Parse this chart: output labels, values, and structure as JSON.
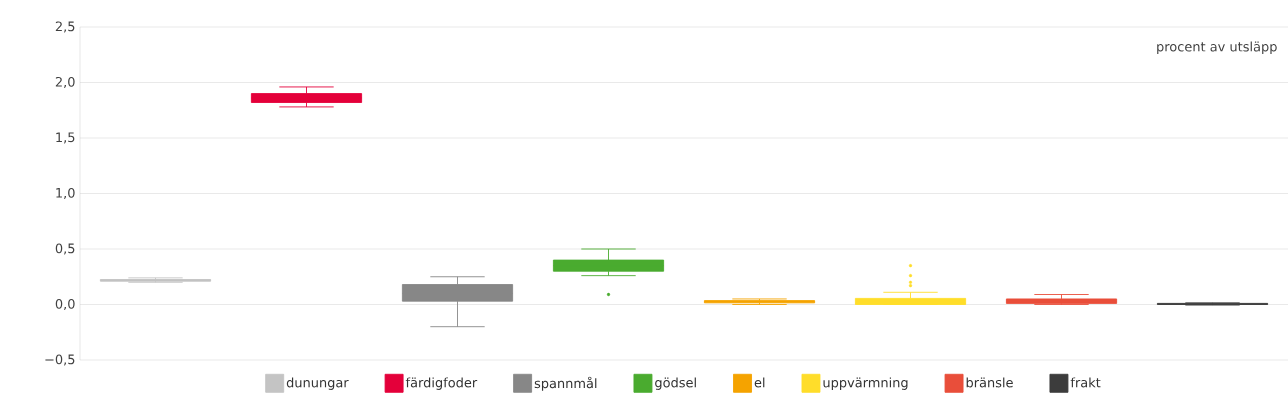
{
  "chart_data": {
    "type": "box",
    "categories": [
      null,
      null,
      null,
      null,
      null,
      null,
      null,
      null
    ],
    "series": [
      {
        "name": "dunungar",
        "color": "#c4c4c4",
        "boxes": [
          {
            "low": 0.2,
            "q1": 0.21,
            "median": 0.22,
            "q3": 0.225,
            "high": 0.24
          },
          null,
          null,
          null,
          null,
          null,
          null,
          null
        ]
      },
      {
        "name": "färdigfoder",
        "color": "#e4003a",
        "boxes": [
          null,
          {
            "low": 1.78,
            "q1": 1.82,
            "median": 1.86,
            "q3": 1.9,
            "high": 1.96
          },
          null,
          null,
          null,
          null,
          null,
          null
        ]
      },
      {
        "name": "spannmål",
        "color": "#878787",
        "boxes": [
          null,
          null,
          {
            "low": -0.2,
            "q1": 0.03,
            "median": 0.1,
            "q3": 0.18,
            "high": 0.25
          },
          null,
          null,
          null,
          null,
          null
        ]
      },
      {
        "name": "gödsel",
        "color": "#4aab2f",
        "boxes": [
          null,
          null,
          null,
          {
            "low": 0.26,
            "q1": 0.3,
            "median": 0.35,
            "q3": 0.4,
            "high": 0.5,
            "outliers": [
              0.09
            ]
          },
          null,
          null,
          null,
          null
        ]
      },
      {
        "name": "el",
        "color": "#f5a300",
        "boxes": [
          null,
          null,
          null,
          null,
          {
            "low": 0.0,
            "q1": 0.015,
            "median": 0.025,
            "q3": 0.035,
            "high": 0.05
          },
          null,
          null,
          null
        ]
      },
      {
        "name": "uppvärmning",
        "color": "#ffdd2a",
        "boxes": [
          null,
          null,
          null,
          null,
          null,
          {
            "low": 0.0,
            "q1": 0.0,
            "median": 0.01,
            "q3": 0.055,
            "high": 0.11,
            "outliers": [
              0.35,
              0.26,
              0.2,
              0.17
            ]
          },
          null,
          null
        ]
      },
      {
        "name": "bränsle",
        "color": "#e94e3a",
        "boxes": [
          null,
          null,
          null,
          null,
          null,
          null,
          {
            "low": 0.0,
            "q1": 0.01,
            "median": 0.03,
            "q3": 0.05,
            "high": 0.09
          },
          null
        ]
      },
      {
        "name": "frakt",
        "color": "#3c3c3c",
        "boxes": [
          null,
          null,
          null,
          null,
          null,
          null,
          null,
          {
            "low": -0.005,
            "q1": 0.0,
            "median": 0.005,
            "q3": 0.01,
            "high": 0.015
          }
        ]
      }
    ],
    "ylim": [
      -0.5,
      2.5
    ],
    "yticks": [
      {
        "value": -0.5,
        "label": "−0,5"
      },
      {
        "value": 0,
        "label": "0,0"
      },
      {
        "value": 0.5,
        "label": "0,5"
      },
      {
        "value": 1,
        "label": "1,0"
      },
      {
        "value": 1.5,
        "label": "1,5"
      },
      {
        "value": 2,
        "label": "2,0"
      },
      {
        "value": 2.5,
        "label": "2,5"
      }
    ],
    "grid": "y",
    "legend": "bottom",
    "tick_labels": "y",
    "annotations": [
      "procent av utsläpp"
    ]
  }
}
